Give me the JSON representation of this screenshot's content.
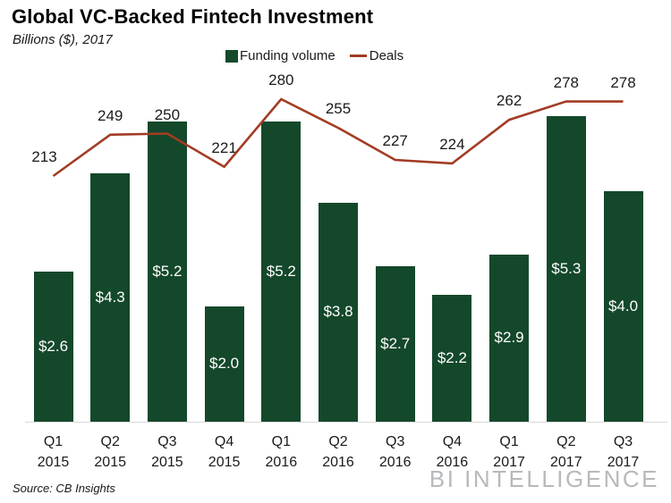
{
  "header": {
    "title": "Global VC-Backed Fintech Investment",
    "subtitle": "Billions ($), 2017"
  },
  "legend": {
    "funding": {
      "label": "Funding volume",
      "swatch": "square-icon",
      "color": "#14482b"
    },
    "deals": {
      "label": "Deals",
      "swatch": "line-dash-icon",
      "color": "#a23c24"
    }
  },
  "chart_data": {
    "type": "combo",
    "title": "Global VC-Backed Fintech Investment",
    "subtitle": "Billions ($), 2017",
    "xlabel": "",
    "ylabel": "Billions ($)",
    "grid": false,
    "legend_position": "top-center",
    "categories": [
      {
        "quarter": "Q1",
        "year": "2015"
      },
      {
        "quarter": "Q2",
        "year": "2015"
      },
      {
        "quarter": "Q3",
        "year": "2015"
      },
      {
        "quarter": "Q4",
        "year": "2015"
      },
      {
        "quarter": "Q1",
        "year": "2016"
      },
      {
        "quarter": "Q2",
        "year": "2016"
      },
      {
        "quarter": "Q3",
        "year": "2016"
      },
      {
        "quarter": "Q4",
        "year": "2016"
      },
      {
        "quarter": "Q1",
        "year": "2017"
      },
      {
        "quarter": "Q2",
        "year": "2017"
      },
      {
        "quarter": "Q3",
        "year": "2017"
      }
    ],
    "series": [
      {
        "name": "Funding volume",
        "chart_type": "bar",
        "unit": "billions_usd",
        "color": "#14482b",
        "values": [
          2.6,
          4.3,
          5.2,
          2.0,
          5.2,
          3.8,
          2.7,
          2.2,
          2.9,
          5.3,
          4.0
        ],
        "data_labels": [
          "$2.6",
          "$4.3",
          "$5.2",
          "$2.0",
          "$5.2",
          "$3.8",
          "$2.7",
          "$2.2",
          "$2.9",
          "$5.3",
          "$4.0"
        ]
      },
      {
        "name": "Deals",
        "chart_type": "line",
        "unit": "count",
        "color": "#a23c24",
        "values": [
          213,
          249,
          250,
          221,
          280,
          255,
          227,
          224,
          262,
          278,
          278
        ],
        "data_labels": [
          "213",
          "249",
          "250",
          "221",
          "280",
          "255",
          "227",
          "224",
          "262",
          "278",
          "278"
        ]
      }
    ]
  },
  "footer": {
    "source": "Source: CB Insights",
    "brand": "BI INTELLIGENCE"
  },
  "colors": {
    "bar": "#14482b",
    "line": "#a23c24",
    "axis_line": "#d9d9d9",
    "bar_label_text": "#ffffff",
    "text": "#1a1a1a",
    "brand_gray": "#b7babc"
  }
}
